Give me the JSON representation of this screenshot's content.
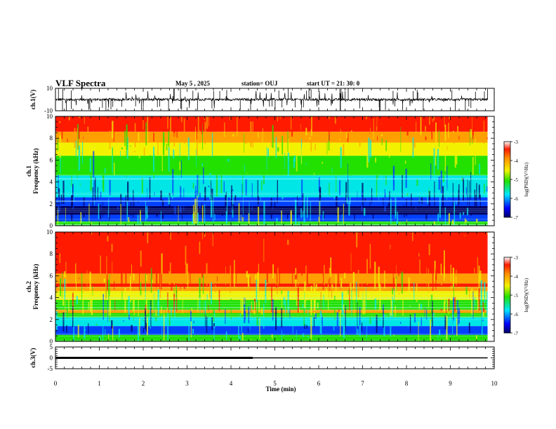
{
  "header": {
    "title": "VLF Spectra",
    "date": "May 5  , 2025",
    "station": "station= OUJ",
    "start": "start  UT  =   21: 30: 0"
  },
  "colors": {
    "red": "#ff1a00",
    "orange": "#ffa000",
    "yellow": "#f2f200",
    "green": "#22e000",
    "cyan": "#00e6e6",
    "blue": "#0040ff",
    "navy": "#000066"
  },
  "chart_data": [
    {
      "type": "line",
      "id": "ch1-waveform",
      "ylabel": "ch.1(V)",
      "ylim": [
        -10,
        10
      ],
      "ytick_labels": [
        "10",
        "-10"
      ],
      "xlim": [
        0,
        10
      ],
      "baseline_value": 0,
      "series": [
        {
          "values_description_excluded": true
        }
      ]
    },
    {
      "type": "heatmap",
      "id": "ch1-spectrogram",
      "ylabel": "ch.1\nFrequency  (kHz)",
      "ylabel_lines": [
        "ch.1",
        "Frequency  (kHz)"
      ],
      "ylim": [
        0,
        10
      ],
      "ytick_labels": [
        "0",
        "2",
        "4",
        "6",
        "8",
        "10"
      ],
      "xlim": [
        0,
        9.85
      ],
      "colorbar": {
        "label": "log(PSD)(V²/Hz)",
        "range": [
          -7,
          -3
        ],
        "tick_labels": [
          "-3",
          "-4",
          "-5",
          "-6",
          "-7"
        ]
      },
      "bands": [
        {
          "from": 0,
          "to": 0.4,
          "level": "green"
        },
        {
          "from": 0.4,
          "to": 1.0,
          "level": "blue"
        },
        {
          "from": 1.0,
          "to": 1.8,
          "level": "navy"
        },
        {
          "from": 1.8,
          "to": 2.6,
          "level": "blue"
        },
        {
          "from": 2.6,
          "to": 4.6,
          "level": "cyan"
        },
        {
          "from": 4.6,
          "to": 6.4,
          "level": "green"
        },
        {
          "from": 6.4,
          "to": 7.6,
          "level": "yellow"
        },
        {
          "from": 7.6,
          "to": 8.6,
          "level": "orange"
        },
        {
          "from": 8.6,
          "to": 10,
          "level": "red"
        }
      ]
    },
    {
      "type": "heatmap",
      "id": "ch2-spectrogram",
      "ylabel_lines": [
        "ch.2",
        "Frequency  (kHz)"
      ],
      "ylim": [
        0,
        10
      ],
      "ytick_labels": [
        "0",
        "2",
        "4",
        "6",
        "8",
        "10"
      ],
      "xlim": [
        0,
        9.85
      ],
      "colorbar": {
        "label": "log(PSD)(V²/Hz)",
        "range": [
          -7,
          -3
        ],
        "tick_labels": [
          "-3",
          "-4",
          "-5",
          "-6",
          "-7"
        ]
      },
      "bands": [
        {
          "from": 0,
          "to": 0.6,
          "level": "green"
        },
        {
          "from": 0.6,
          "to": 1.4,
          "level": "blue"
        },
        {
          "from": 1.4,
          "to": 2.2,
          "level": "cyan"
        },
        {
          "from": 2.2,
          "to": 2.6,
          "level": "green"
        },
        {
          "from": 2.6,
          "to": 2.9,
          "level": "orange"
        },
        {
          "from": 2.9,
          "to": 3.8,
          "level": "green"
        },
        {
          "from": 3.8,
          "to": 4.6,
          "level": "yellow"
        },
        {
          "from": 4.6,
          "to": 5.0,
          "level": "orange"
        },
        {
          "from": 5.0,
          "to": 5.3,
          "level": "red"
        },
        {
          "from": 5.3,
          "to": 6.2,
          "level": "orange"
        },
        {
          "from": 6.2,
          "to": 10,
          "level": "red"
        }
      ]
    },
    {
      "type": "line",
      "id": "ch3-trace",
      "ylabel": "ch.3(V)",
      "ylim": [
        -5,
        5
      ],
      "ytick_labels": [
        "5",
        "0",
        "-5"
      ],
      "xlim": [
        0,
        10
      ],
      "series": [
        {
          "x": [
            0,
            4.5
          ],
          "y": [
            0,
            0
          ],
          "weight": "thick"
        },
        {
          "x": [
            4.5,
            9.85
          ],
          "y": [
            0,
            0
          ],
          "weight": "thin"
        }
      ],
      "xlabel": "Time  (min)",
      "xtick_labels": [
        "0",
        "1",
        "2",
        "3",
        "4",
        "5",
        "6",
        "7",
        "8",
        "9",
        "10"
      ]
    }
  ]
}
